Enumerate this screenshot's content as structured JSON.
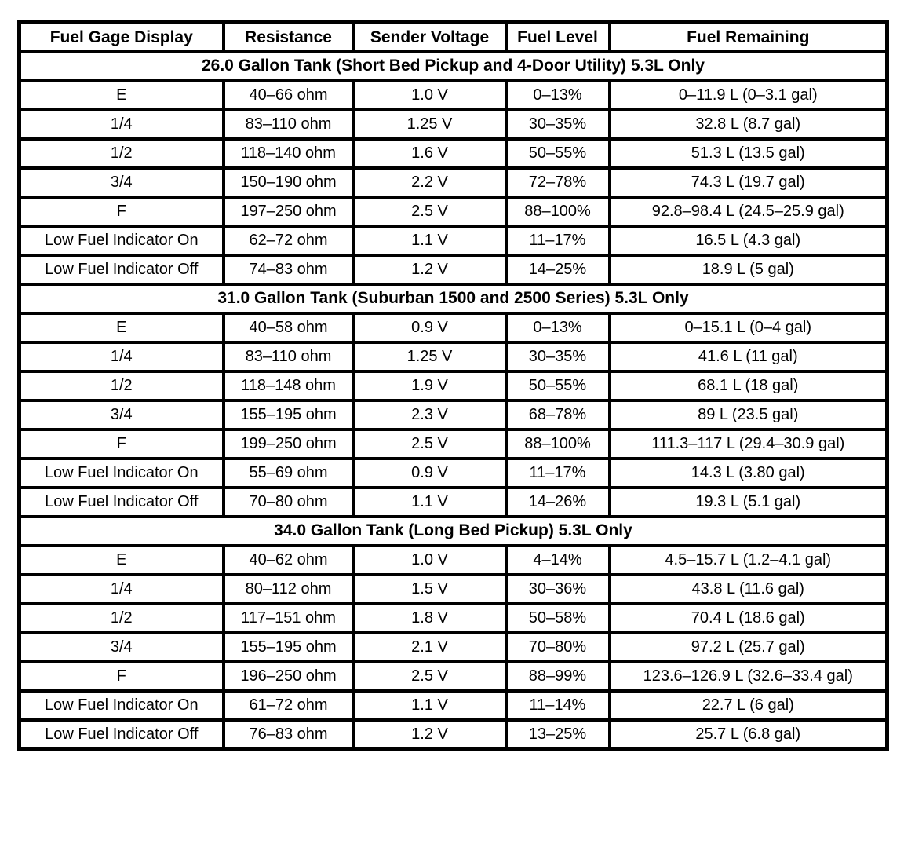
{
  "table": {
    "columns": [
      "Fuel Gage Display",
      "Resistance",
      "Sender Voltage",
      "Fuel Level",
      "Fuel Remaining"
    ],
    "sections": [
      {
        "title": "26.0 Gallon Tank (Short Bed Pickup and 4-Door Utility) 5.3L Only",
        "rows": [
          [
            "E",
            "40–66 ohm",
            "1.0 V",
            "0–13%",
            "0–11.9 L (0–3.1 gal)"
          ],
          [
            "1/4",
            "83–110 ohm",
            "1.25 V",
            "30–35%",
            "32.8 L (8.7 gal)"
          ],
          [
            "1/2",
            "118–140 ohm",
            "1.6 V",
            "50–55%",
            "51.3 L (13.5 gal)"
          ],
          [
            "3/4",
            "150–190 ohm",
            "2.2 V",
            "72–78%",
            "74.3 L (19.7 gal)"
          ],
          [
            "F",
            "197–250 ohm",
            "2.5 V",
            "88–100%",
            "92.8–98.4 L (24.5–25.9 gal)"
          ],
          [
            "Low Fuel Indicator On",
            "62–72 ohm",
            "1.1 V",
            "11–17%",
            "16.5 L (4.3 gal)"
          ],
          [
            "Low Fuel Indicator Off",
            "74–83 ohm",
            "1.2 V",
            "14–25%",
            "18.9 L (5 gal)"
          ]
        ]
      },
      {
        "title": "31.0 Gallon Tank (Suburban 1500 and 2500 Series) 5.3L Only",
        "rows": [
          [
            "E",
            "40–58 ohm",
            "0.9 V",
            "0–13%",
            "0–15.1 L (0–4 gal)"
          ],
          [
            "1/4",
            "83–110 ohm",
            "1.25 V",
            "30–35%",
            "41.6 L (11 gal)"
          ],
          [
            "1/2",
            "118–148 ohm",
            "1.9 V",
            "50–55%",
            "68.1 L (18 gal)"
          ],
          [
            "3/4",
            "155–195 ohm",
            "2.3 V",
            "68–78%",
            "89 L (23.5 gal)"
          ],
          [
            "F",
            "199–250 ohm",
            "2.5 V",
            "88–100%",
            "111.3–117 L (29.4–30.9 gal)"
          ],
          [
            "Low Fuel Indicator On",
            "55–69 ohm",
            "0.9 V",
            "11–17%",
            "14.3 L (3.80 gal)"
          ],
          [
            "Low Fuel Indicator Off",
            "70–80 ohm",
            "1.1 V",
            "14–26%",
            "19.3 L (5.1 gal)"
          ]
        ]
      },
      {
        "title": "34.0 Gallon Tank (Long Bed Pickup) 5.3L Only",
        "rows": [
          [
            "E",
            "40–62 ohm",
            "1.0 V",
            "4–14%",
            "4.5–15.7 L (1.2–4.1 gal)"
          ],
          [
            "1/4",
            "80–112 ohm",
            "1.5 V",
            "30–36%",
            "43.8 L (11.6 gal)"
          ],
          [
            "1/2",
            "117–151 ohm",
            "1.8 V",
            "50–58%",
            "70.4 L (18.6 gal)"
          ],
          [
            "3/4",
            "155–195 ohm",
            "2.1 V",
            "70–80%",
            "97.2 L (25.7 gal)"
          ],
          [
            "F",
            "196–250 ohm",
            "2.5 V",
            "88–99%",
            "123.6–126.9 L (32.6–33.4 gal)"
          ],
          [
            "Low Fuel Indicator On",
            "61–72 ohm",
            "1.1 V",
            "11–14%",
            "22.7 L (6 gal)"
          ],
          [
            "Low Fuel Indicator Off",
            "76–83 ohm",
            "1.2 V",
            "13–25%",
            "25.7 L (6.8 gal)"
          ]
        ]
      }
    ]
  },
  "colors": {
    "border": "#000000",
    "background": "#ffffff",
    "text": "#000000"
  }
}
